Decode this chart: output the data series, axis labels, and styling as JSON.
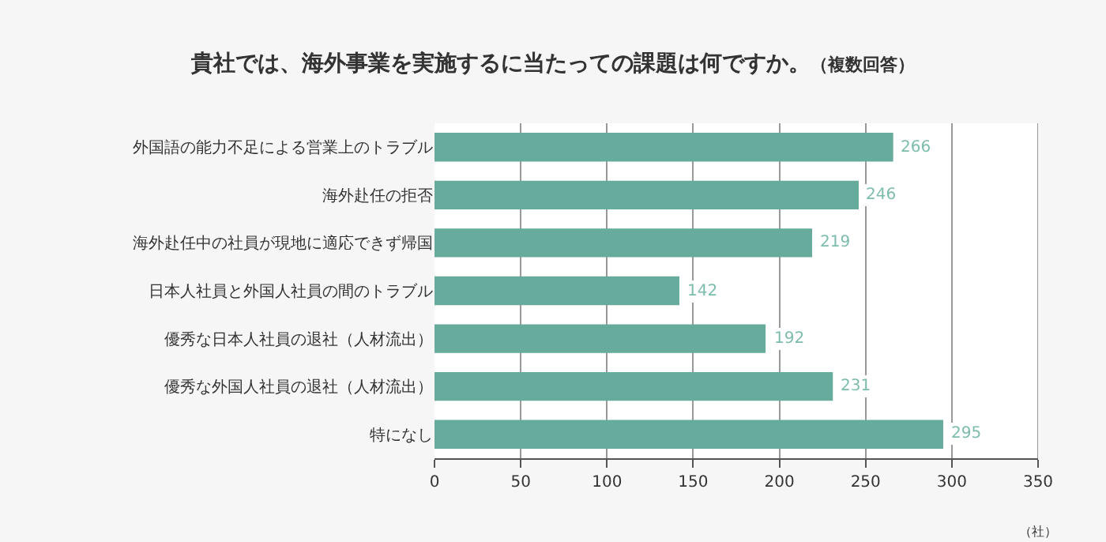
{
  "chart_data": {
    "type": "bar",
    "orientation": "horizontal",
    "title": "貴社では、海外事業を実施するに当たっての課題は何ですか。",
    "subtitle": "（複数回答）",
    "xlabel": "（社）",
    "categories": [
      "外国語の能力不足による営業上のトラブル",
      "海外赴任の拒否",
      "海外赴任中の社員が現地に適応できず帰国",
      "日本人社員と外国人社員の間のトラブル",
      "優秀な日本人社員の退社（人材流出）",
      "優秀な外国人社員の退社（人材流出）",
      "特になし"
    ],
    "values": [
      266,
      246,
      219,
      142,
      192,
      231,
      295
    ],
    "color": "#66ab9c",
    "data_labels": true,
    "xlim": [
      0,
      350
    ],
    "xticks": [
      0,
      50,
      100,
      150,
      200,
      250,
      300,
      350
    ],
    "grid": "x"
  }
}
